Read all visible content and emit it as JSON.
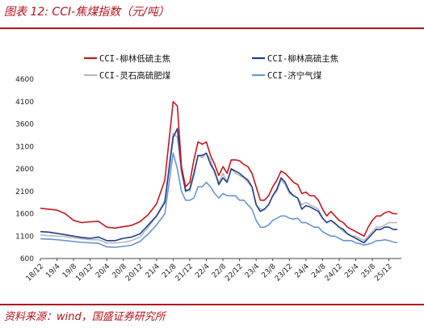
{
  "figure": {
    "title": "图表 12:  CCI-焦煤指数（元/吨）",
    "source": "资料来源：wind，国盛证券研究所"
  },
  "colors": {
    "accent": "#b3141b",
    "series": [
      "#c8161d",
      "#1f3f8f",
      "#b8b8b8",
      "#6a95cf"
    ]
  },
  "chart_data": {
    "type": "line",
    "title": "",
    "xlabel": "",
    "ylabel": "",
    "ylim": [
      600,
      4600
    ],
    "yticks": [
      600,
      1100,
      1600,
      2100,
      2600,
      3100,
      3600,
      4100,
      4600
    ],
    "xlim": [
      "2018-12",
      "2026-03"
    ],
    "xtick_labels": [
      "18/12",
      "19/4",
      "19/8",
      "19/12",
      "20/4",
      "20/8",
      "20/12",
      "21/4",
      "21/8",
      "21/12",
      "22/4",
      "22/8",
      "22/12",
      "23/4",
      "23/8",
      "23/12",
      "24/4",
      "24/8",
      "24/12",
      "25/4",
      "25/8",
      "25/12"
    ],
    "legend_position": "top",
    "grid": false,
    "x": [
      "2018-12",
      "2019-02",
      "2019-04",
      "2019-06",
      "2019-08",
      "2019-10",
      "2019-12",
      "2020-02",
      "2020-04",
      "2020-06",
      "2020-08",
      "2020-10",
      "2020-12",
      "2021-02",
      "2021-04",
      "2021-06",
      "2021-08",
      "2021-09",
      "2021-10",
      "2021-11",
      "2021-12",
      "2022-01",
      "2022-02",
      "2022-03",
      "2022-04",
      "2022-05",
      "2022-06",
      "2022-07",
      "2022-08",
      "2022-09",
      "2022-10",
      "2022-11",
      "2022-12",
      "2023-01",
      "2023-02",
      "2023-03",
      "2023-04",
      "2023-05",
      "2023-06",
      "2023-07",
      "2023-08",
      "2023-09",
      "2023-10",
      "2023-11",
      "2023-12",
      "2024-01",
      "2024-02",
      "2024-03",
      "2024-04",
      "2024-05",
      "2024-06",
      "2024-07",
      "2024-08",
      "2024-09",
      "2024-10",
      "2024-11",
      "2024-12",
      "2025-01",
      "2025-02",
      "2025-03",
      "2025-04",
      "2025-05",
      "2025-06",
      "2025-07",
      "2025-08",
      "2025-09",
      "2025-10",
      "2025-11",
      "2025-12",
      "2026-01",
      "2026-02"
    ],
    "series": [
      {
        "name": "CCI-柳林低硫主焦",
        "values": [
          1720,
          1700,
          1680,
          1600,
          1450,
          1400,
          1420,
          1430,
          1300,
          1280,
          1310,
          1340,
          1420,
          1580,
          1820,
          2350,
          4100,
          4000,
          2650,
          2200,
          2300,
          2800,
          3200,
          3150,
          3200,
          2900,
          2700,
          2450,
          2650,
          2500,
          2800,
          2800,
          2780,
          2700,
          2650,
          2500,
          2200,
          1900,
          1900,
          2000,
          2200,
          2350,
          2550,
          2500,
          2400,
          2300,
          2250,
          2050,
          2080,
          2000,
          2000,
          1900,
          1700,
          1550,
          1650,
          1550,
          1450,
          1400,
          1300,
          1250,
          1200,
          1150,
          1100,
          1300,
          1450,
          1550,
          1550,
          1620,
          1650,
          1600,
          1600
        ]
      },
      {
        "name": "CCI-柳林高硫主焦",
        "values": [
          1200,
          1190,
          1160,
          1130,
          1100,
          1070,
          1050,
          1080,
          1000,
          1000,
          1050,
          1080,
          1150,
          1350,
          1550,
          1850,
          3300,
          3500,
          2600,
          2100,
          2150,
          2500,
          2900,
          2900,
          2950,
          2700,
          2550,
          2250,
          2400,
          2300,
          2600,
          2550,
          2500,
          2420,
          2350,
          2200,
          1800,
          1650,
          1700,
          1800,
          2000,
          2150,
          2400,
          2300,
          2100,
          2000,
          1950,
          1700,
          1780,
          1750,
          1700,
          1650,
          1500,
          1400,
          1450,
          1380,
          1300,
          1250,
          1150,
          1100,
          1050,
          1000,
          950,
          1050,
          1150,
          1250,
          1250,
          1300,
          1300,
          1250,
          1250
        ]
      },
      {
        "name": "CCI-灵石高硫肥煤",
        "values": [
          1120,
          1110,
          1100,
          1090,
          1060,
          1040,
          1020,
          1020,
          950,
          950,
          960,
          1000,
          1080,
          1300,
          1550,
          1900,
          3400,
          3300,
          2500,
          2150,
          2100,
          2450,
          2900,
          2850,
          2950,
          2800,
          2500,
          2300,
          2500,
          2300,
          2600,
          2500,
          2450,
          2400,
          2300,
          2200,
          1800,
          1700,
          1700,
          1800,
          2000,
          2100,
          2350,
          2250,
          2050,
          2000,
          1950,
          1800,
          1850,
          1800,
          1750,
          1700,
          1500,
          1400,
          1450,
          1400,
          1300,
          1200,
          1150,
          1100,
          1100,
          1050,
          1000,
          1100,
          1200,
          1300,
          1300,
          1350,
          1400,
          1400,
          1400
        ]
      },
      {
        "name": "CCI-济宁气煤",
        "values": [
          1040,
          1030,
          1020,
          1000,
          980,
          960,
          950,
          940,
          860,
          850,
          870,
          900,
          980,
          1150,
          1350,
          1600,
          2950,
          2600,
          2100,
          1900,
          1900,
          1950,
          2200,
          2200,
          2300,
          2200,
          2050,
          1950,
          2050,
          2000,
          2000,
          2000,
          1900,
          1900,
          1800,
          1700,
          1450,
          1300,
          1300,
          1350,
          1450,
          1500,
          1550,
          1550,
          1500,
          1480,
          1500,
          1400,
          1400,
          1350,
          1300,
          1300,
          1200,
          1150,
          1100,
          1100,
          1050,
          1000,
          1000,
          1000,
          950,
          930,
          900,
          920,
          950,
          1000,
          1000,
          1020,
          1000,
          970,
          950
        ]
      }
    ]
  }
}
